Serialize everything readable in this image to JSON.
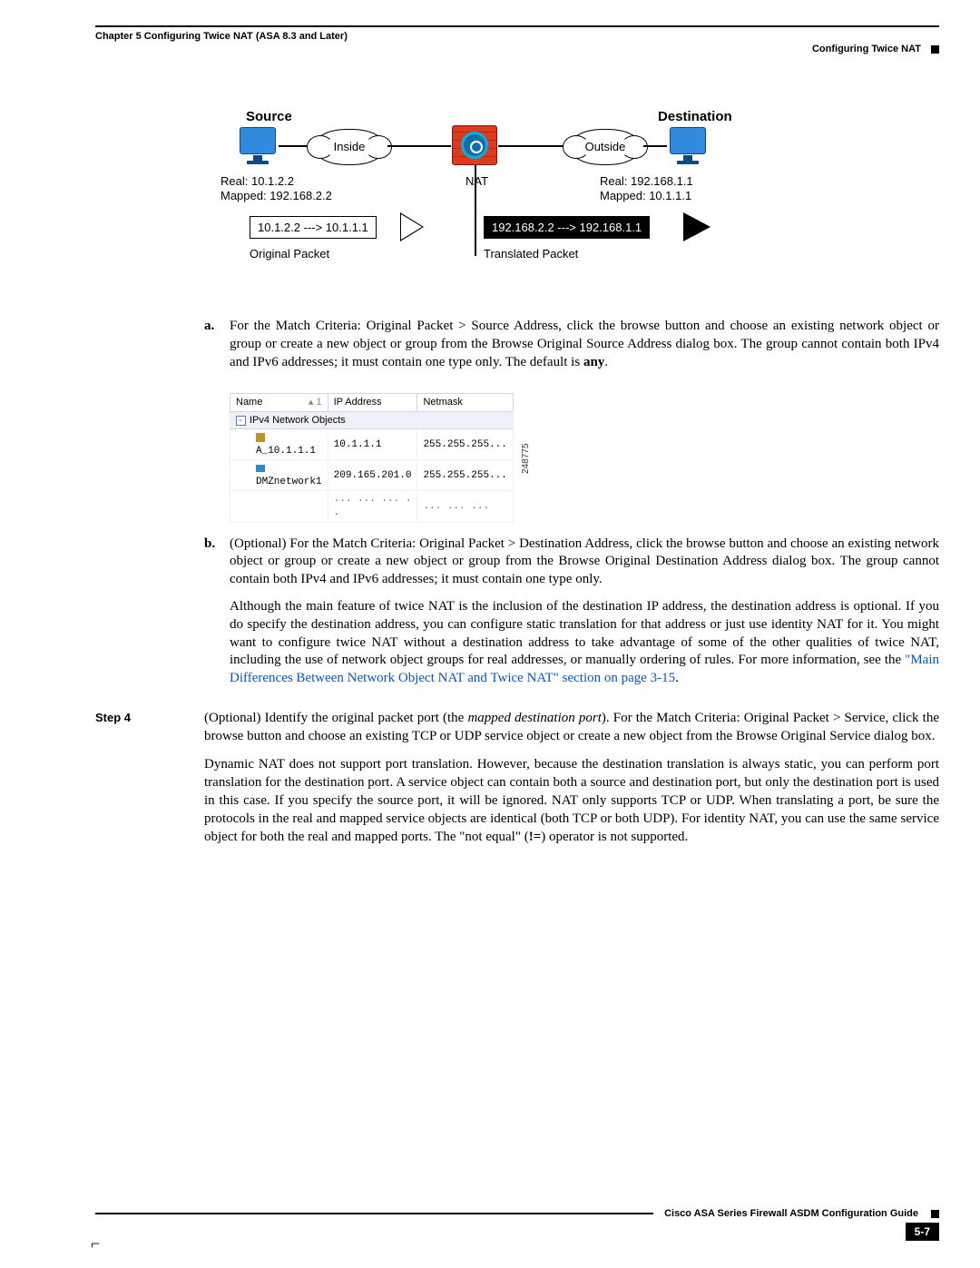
{
  "header": {
    "chapterLine": "Chapter 5    Configuring Twice NAT (ASA 8.3 and Later)",
    "sectionLine": "Configuring Twice NAT"
  },
  "diagram": {
    "sourceLabel": "Source",
    "destinationLabel": "Destination",
    "insideLabel": "Inside",
    "outsideLabel": "Outside",
    "natLabel": "NAT",
    "srcReal": "Real: 10.1.2.2",
    "srcMapped": "Mapped: 192.168.2.2",
    "dstReal": "Real: 192.168.1.1",
    "dstMapped": "Mapped: 10.1.1.1",
    "origPacket": "10.1.2.2 ---> 10.1.1.1",
    "transPacket": "192.168.2.2 ---> 192.168.1.1",
    "origPacketCaption": "Original Packet",
    "transPacketCaption": "Translated Packet"
  },
  "list": {
    "a": {
      "marker": "a.",
      "textPre": "For the Match Criteria: Original Packet > Source Address, click the browse button and choose an existing network object or group or create a new object or group from the Browse Original Source Address dialog box. The group cannot contain both IPv4 and IPv6 addresses; it must contain one type only. The default is ",
      "bold": "any",
      "textPost": "."
    },
    "b": {
      "marker": "b.",
      "p1": "(Optional) For the Match Criteria: Original Packet > Destination Address, click the browse button and choose an existing network object or group or create a new object or group from the Browse Original Destination Address dialog box. The group cannot contain both IPv4 and IPv6 addresses; it must contain one type only.",
      "p2pre": "Although the main feature of twice NAT is the inclusion of the destination IP address, the destination address is optional. If you do specify the destination address, you can configure static translation for that address or just use identity NAT for it. You might want to configure twice NAT without a destination address to take advantage of some of the other qualities of twice NAT, including the use of network object groups for real addresses, or manually ordering of rules. For more information, see the ",
      "link": "\"Main Differences Between Network Object NAT and Twice NAT\" section on page 3-15",
      "p2post": "."
    }
  },
  "table": {
    "sideLabel": "248775",
    "columns": [
      "Name",
      "IP Address",
      "Netmask"
    ],
    "groupRow": "IPv4 Network Objects",
    "rows": [
      {
        "name": "A_10.1.1.1",
        "ip": "10.1.1.1",
        "mask": "255.255.255..."
      },
      {
        "name": "DMZnetwork1",
        "ip": "209.165.201.0",
        "mask": "255.255.255..."
      }
    ],
    "partial": {
      "ip": "...  ...  ...  . .",
      "mask": "... ... ..."
    }
  },
  "step4": {
    "label": "Step 4",
    "p1a": "(Optional) Identify the original packet port (the ",
    "p1i": "mapped destination port",
    "p1b": "). For the Match Criteria: Original Packet > Service, click the browse button and choose an existing TCP or UDP service object or create a new object from the Browse Original Service dialog box.",
    "p2a": "Dynamic NAT does not support port translation. However, because the destination translation is always static, you can perform port translation for the destination port. A service object can contain both a source and destination port, but only the destination port is used in this case. If you specify the source port, it will be ignored. NAT only supports TCP or UDP. When translating a port, be sure the protocols in the real and mapped service objects are identical (both TCP or both UDP). For identity NAT, you can use the same service object for both the real and mapped ports. The \"not equal\" (",
    "p2b": "!=",
    "p2c": ") operator is not supported."
  },
  "footer": {
    "guide": "Cisco ASA Series Firewall ASDM Configuration Guide",
    "page": "5-7"
  }
}
